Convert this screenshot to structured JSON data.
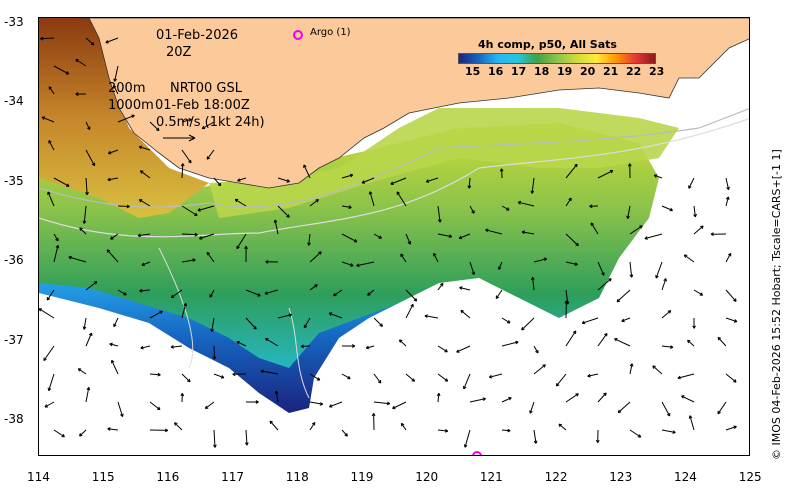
{
  "header": {
    "date": "01-Feb-2026",
    "time": "20Z",
    "depth_200": "200m",
    "depth_1000": "1000m",
    "product": "NRT00 GSL",
    "product_time": "01-Feb 18:00Z",
    "scale": "0.5m/s (1kt 24h)"
  },
  "legend": {
    "argo": "Argo (1)",
    "colorbar_title": "4h comp, p50, All Sats",
    "colorbar_ticks": [
      "15",
      "16",
      "17",
      "18",
      "19",
      "20",
      "21",
      "22",
      "23"
    ],
    "colorbar_colors": [
      "#1a237e",
      "#1565c0",
      "#29b6f6",
      "#26c6da",
      "#43a047",
      "#8bc34a",
      "#cddc39",
      "#ffeb3b",
      "#ff9800",
      "#e53935",
      "#8b1a1a"
    ]
  },
  "axes": {
    "x_ticks": [
      "114",
      "115",
      "116",
      "117",
      "118",
      "119",
      "120",
      "121",
      "122",
      "123",
      "124",
      "125"
    ],
    "y_ticks": [
      "-33",
      "-34",
      "-35",
      "-36",
      "-37",
      "-38"
    ]
  },
  "side_text": "© IMOS 04-Feb-2026 15:52 Hobart; Tscale=CARS+[-1 1]",
  "colors": {
    "land": "#fcc99b",
    "argo_marker": "#ee00ee"
  }
}
